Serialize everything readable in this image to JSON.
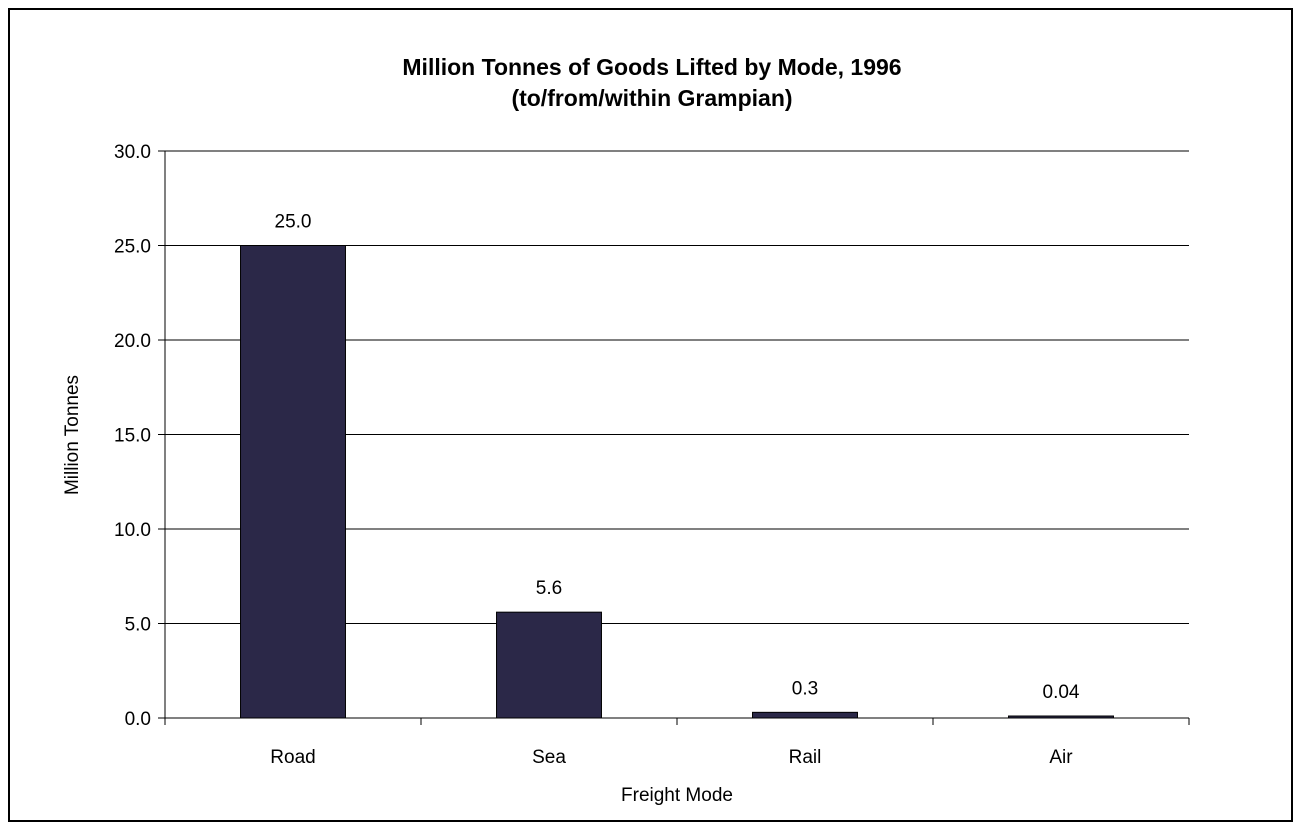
{
  "chart_data": {
    "type": "bar",
    "title": "Million Tonnes of Goods Lifted by Mode, 1996",
    "subtitle": "(to/from/within Grampian)",
    "xlabel": "Freight Mode",
    "ylabel": "Million Tonnes",
    "categories": [
      "Road",
      "Sea",
      "Rail",
      "Air"
    ],
    "values": [
      25.0,
      5.6,
      0.3,
      0.04
    ],
    "data_labels": [
      "25.0",
      "5.6",
      "0.3",
      "0.04"
    ],
    "ylim": [
      0,
      30
    ],
    "yticks": [
      0,
      5,
      10,
      15,
      20,
      25,
      30
    ],
    "ytick_labels": [
      "0.0",
      "5.0",
      "10.0",
      "15.0",
      "20.0",
      "25.0",
      "30.0"
    ],
    "grid": true,
    "legend": "none",
    "colors": {
      "bar_fill": "#2b2848",
      "bar_stroke": "#000000",
      "grid": "#000000",
      "border": "#000000"
    }
  }
}
